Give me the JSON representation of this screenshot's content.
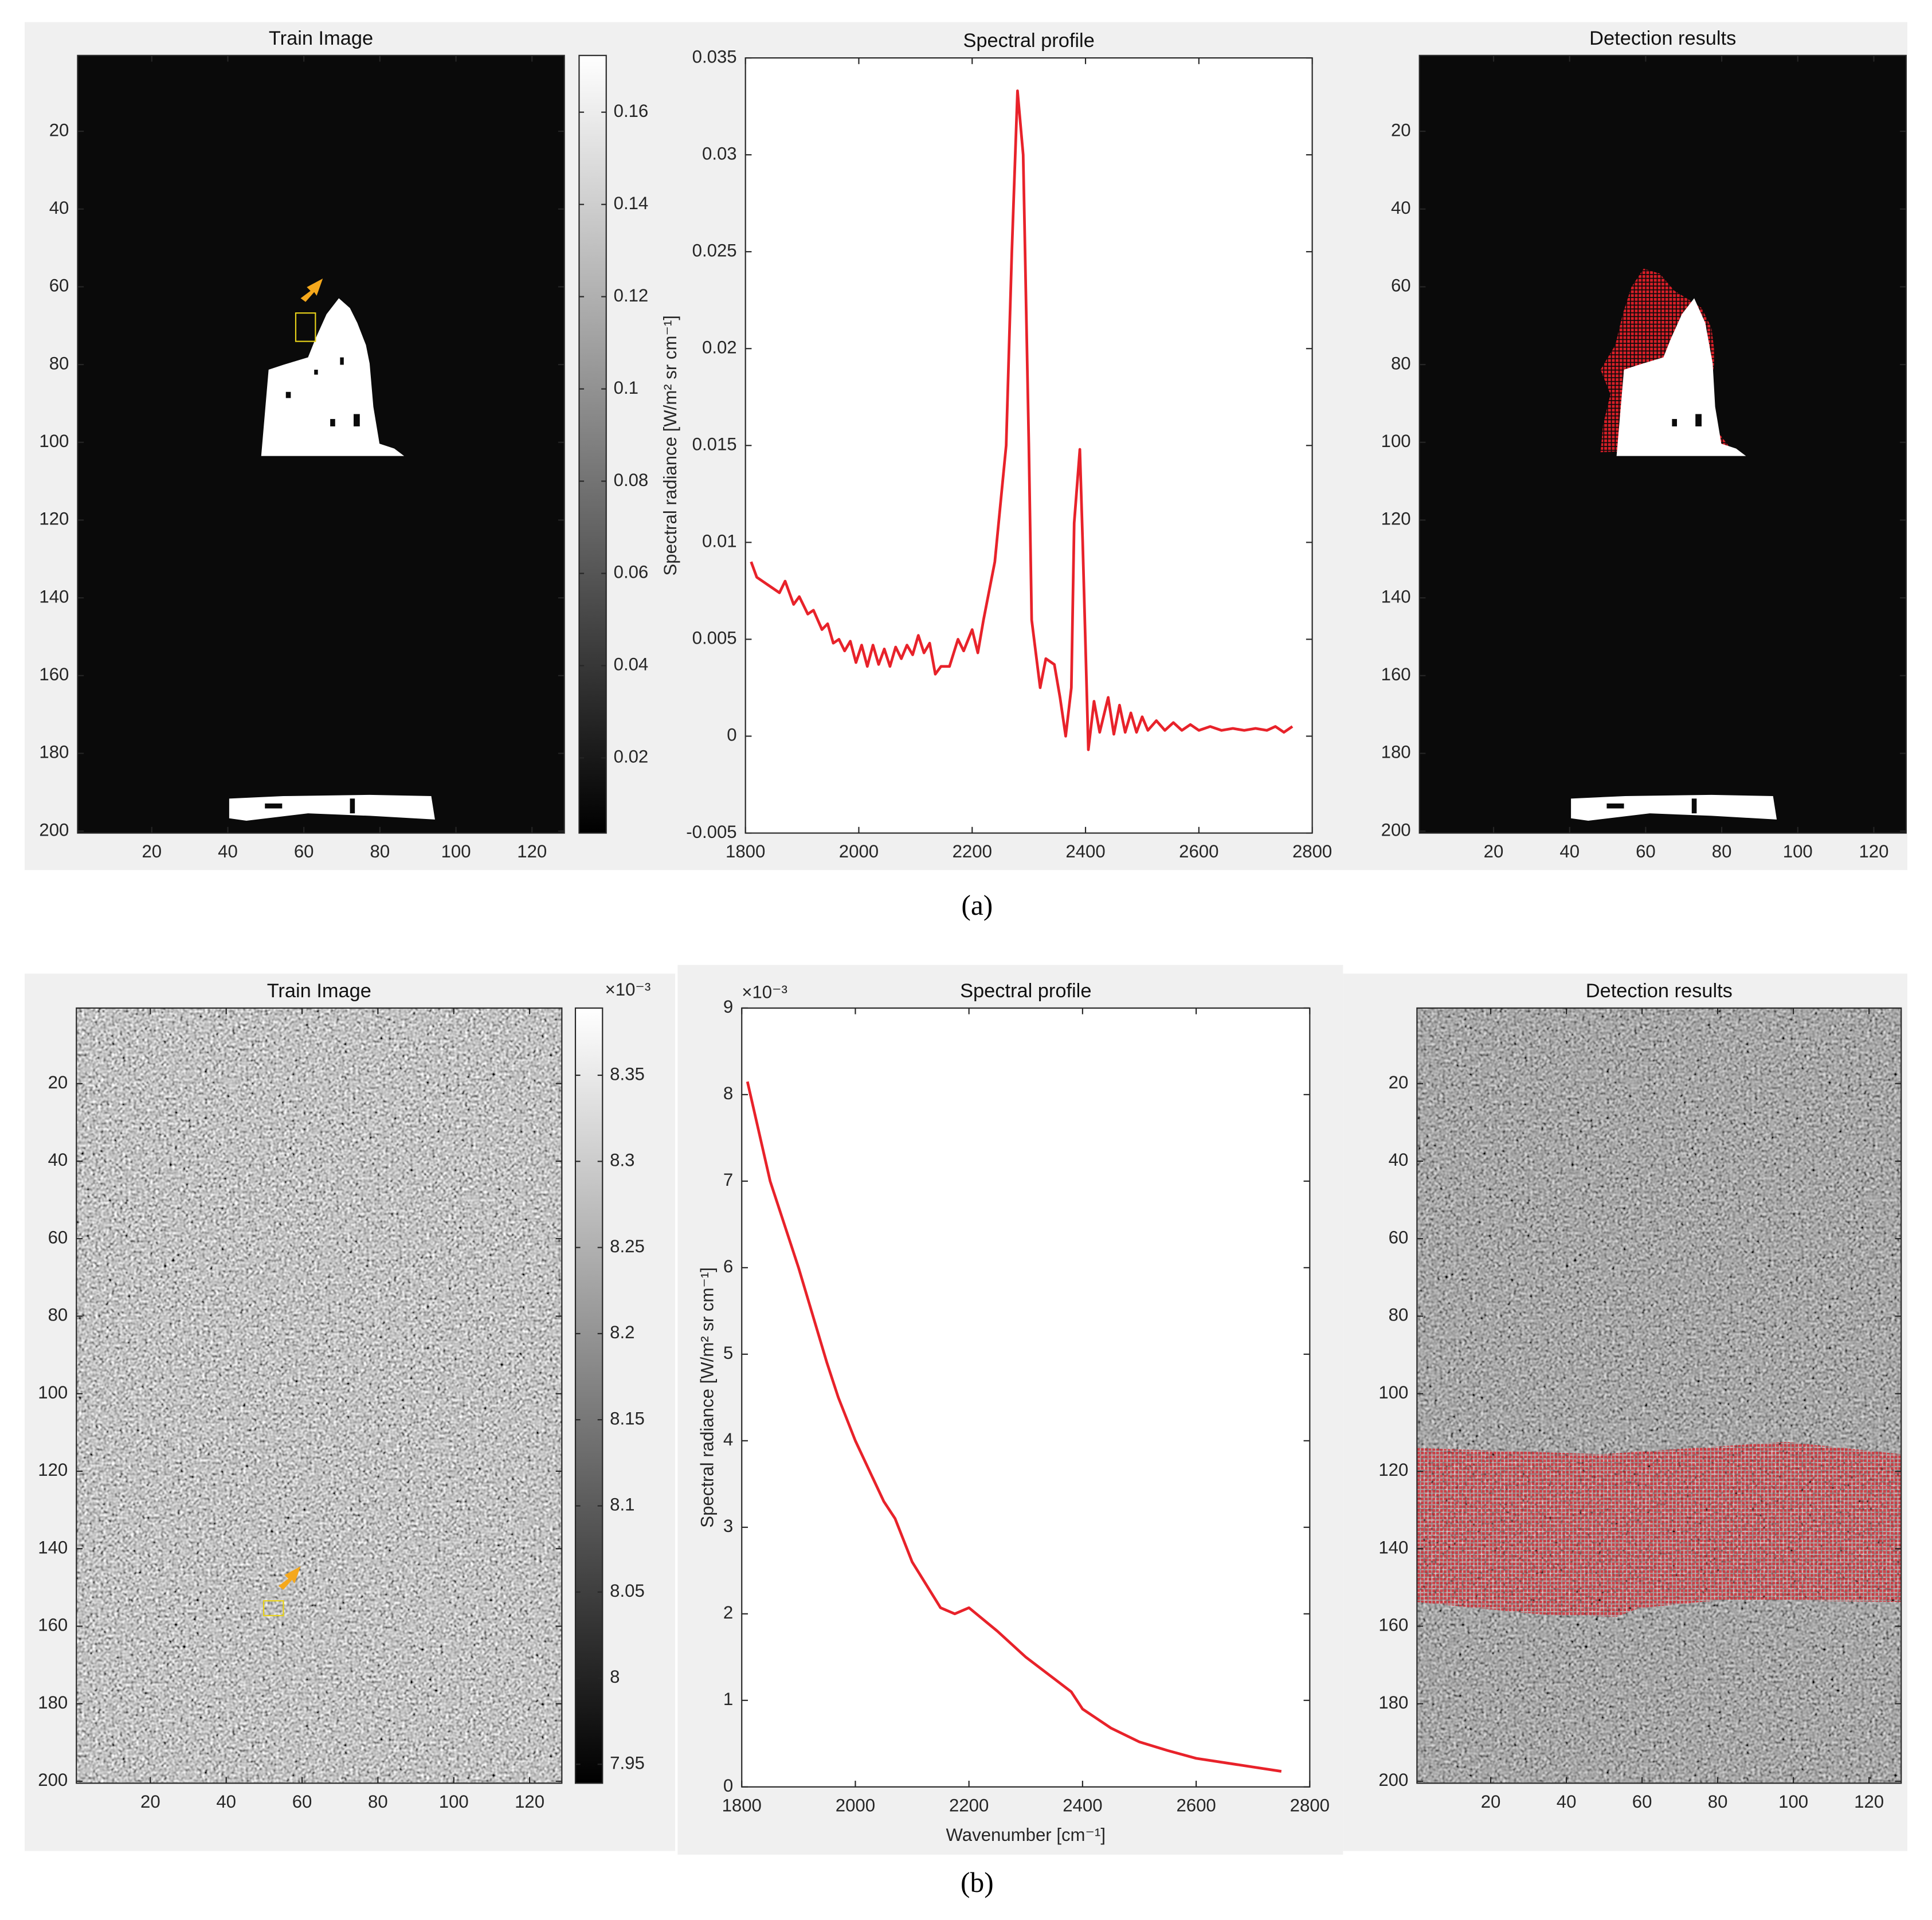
{
  "chart_data": [
    {
      "type": "image",
      "title": "Train Image",
      "xlim": [
        0.5,
        128.5
      ],
      "ylim": [
        200.5,
        0.5
      ],
      "xticks": [
        20,
        40,
        60,
        80,
        100,
        120
      ],
      "yticks": [
        20,
        40,
        60,
        80,
        100,
        120,
        140,
        160,
        180,
        200
      ],
      "colorbar": {
        "clim": [
          0.0037,
          0.1723
        ],
        "ticks": [
          0.02,
          0.04,
          0.06,
          0.08,
          0.1,
          0.12,
          0.14,
          0.16
        ]
      }
    },
    {
      "type": "line",
      "title": "Spectral profile",
      "ylabel": "Spectral radiance [W/m² sr cm⁻¹]",
      "xlim": [
        1800,
        2800
      ],
      "ylim": [
        -0.005,
        0.035
      ],
      "xticks": [
        1800,
        2000,
        2200,
        2400,
        2600,
        2800
      ],
      "yticks": [
        -0.005,
        0,
        0.005,
        0.01,
        0.015,
        0.02,
        0.025,
        0.03,
        0.035
      ],
      "color": "#e8222a",
      "x": [
        1810,
        1820,
        1840,
        1860,
        1870,
        1885,
        1895,
        1910,
        1920,
        1935,
        1945,
        1955,
        1965,
        1975,
        1985,
        1995,
        2005,
        2015,
        2025,
        2035,
        2045,
        2055,
        2065,
        2075,
        2085,
        2095,
        2105,
        2115,
        2125,
        2135,
        2145,
        2160,
        2175,
        2185,
        2200,
        2210,
        2220,
        2240,
        2260,
        2270,
        2280,
        2290,
        2300,
        2305,
        2320,
        2330,
        2345,
        2355,
        2365,
        2375,
        2380,
        2390,
        2395,
        2405,
        2415,
        2425,
        2440,
        2450,
        2460,
        2470,
        2480,
        2490,
        2500,
        2510,
        2525,
        2540,
        2555,
        2570,
        2585,
        2600,
        2620,
        2640,
        2660,
        2680,
        2700,
        2720,
        2735,
        2750,
        2765
      ],
      "values": [
        0.009,
        0.0082,
        0.0078,
        0.0074,
        0.008,
        0.0068,
        0.0072,
        0.0063,
        0.0065,
        0.0055,
        0.0058,
        0.0048,
        0.005,
        0.0044,
        0.0049,
        0.0038,
        0.0047,
        0.0036,
        0.0047,
        0.0037,
        0.0045,
        0.0036,
        0.0046,
        0.004,
        0.0047,
        0.0042,
        0.0052,
        0.0043,
        0.0048,
        0.0032,
        0.0036,
        0.0036,
        0.005,
        0.0044,
        0.0055,
        0.0043,
        0.006,
        0.009,
        0.015,
        0.025,
        0.0333,
        0.03,
        0.015,
        0.006,
        0.0025,
        0.004,
        0.0037,
        0.002,
        0.0,
        0.0025,
        0.011,
        0.0148,
        0.01,
        -0.0007,
        0.0018,
        0.0002,
        0.002,
        0.0001,
        0.0016,
        0.0002,
        0.0012,
        0.0002,
        0.001,
        0.0003,
        0.0008,
        0.0003,
        0.0007,
        0.0003,
        0.0006,
        0.0003,
        0.0005,
        0.0003,
        0.0004,
        0.0003,
        0.0004,
        0.0003,
        0.0005,
        0.0002,
        0.0005
      ]
    },
    {
      "type": "image",
      "title": "Detection results",
      "xlim": [
        0.5,
        128.5
      ],
      "ylim": [
        200.5,
        0.5
      ],
      "xticks": [
        20,
        40,
        60,
        80,
        100,
        120
      ],
      "yticks": [
        20,
        40,
        60,
        80,
        100,
        120,
        140,
        160,
        180,
        200
      ]
    },
    {
      "type": "image",
      "title": "Train Image",
      "xlim": [
        0.5,
        128.5
      ],
      "ylim": [
        200.5,
        0.5
      ],
      "xticks": [
        20,
        40,
        60,
        80,
        100,
        120
      ],
      "yticks": [
        20,
        40,
        60,
        80,
        100,
        120,
        140,
        160,
        180,
        200
      ],
      "colorbar": {
        "clim": [
          7.939,
          8.389
        ],
        "ticks": [
          7.95,
          8,
          8.05,
          8.1,
          8.15,
          8.2,
          8.25,
          8.3,
          8.35
        ],
        "exponent_label": "×10⁻³"
      }
    },
    {
      "type": "line",
      "title": "Spectral profile",
      "ylabel": "Spectral radiance [W/m² sr cm⁻¹]",
      "xlabel": "Wavenumber [cm⁻¹]",
      "y_exponent_label": "×10⁻³",
      "xlim": [
        1800,
        2800
      ],
      "ylim": [
        0,
        9
      ],
      "xticks": [
        1800,
        2000,
        2200,
        2400,
        2600,
        2800
      ],
      "yticks": [
        0,
        1,
        2,
        3,
        4,
        5,
        6,
        7,
        8,
        9
      ],
      "color": "#e8222a",
      "x": [
        1810,
        1850,
        1900,
        1950,
        1970,
        2000,
        2050,
        2070,
        2100,
        2150,
        2175,
        2200,
        2250,
        2300,
        2350,
        2380,
        2400,
        2450,
        2500,
        2550,
        2600,
        2650,
        2700,
        2750
      ],
      "values": [
        8.15,
        7.0,
        6.0,
        4.9,
        4.5,
        4.0,
        3.3,
        3.1,
        2.6,
        2.07,
        2.0,
        2.07,
        1.8,
        1.5,
        1.25,
        1.1,
        0.9,
        0.68,
        0.52,
        0.42,
        0.33,
        0.28,
        0.23,
        0.18
      ]
    },
    {
      "type": "image",
      "title": "Detection results",
      "xlim": [
        0.5,
        128.5
      ],
      "ylim": [
        200.5,
        0.5
      ],
      "xticks": [
        20,
        40,
        60,
        80,
        100,
        120
      ],
      "yticks": [
        20,
        40,
        60,
        80,
        100,
        120,
        140,
        160,
        180,
        200
      ]
    }
  ],
  "captions": [
    "(a)",
    "(b)"
  ]
}
